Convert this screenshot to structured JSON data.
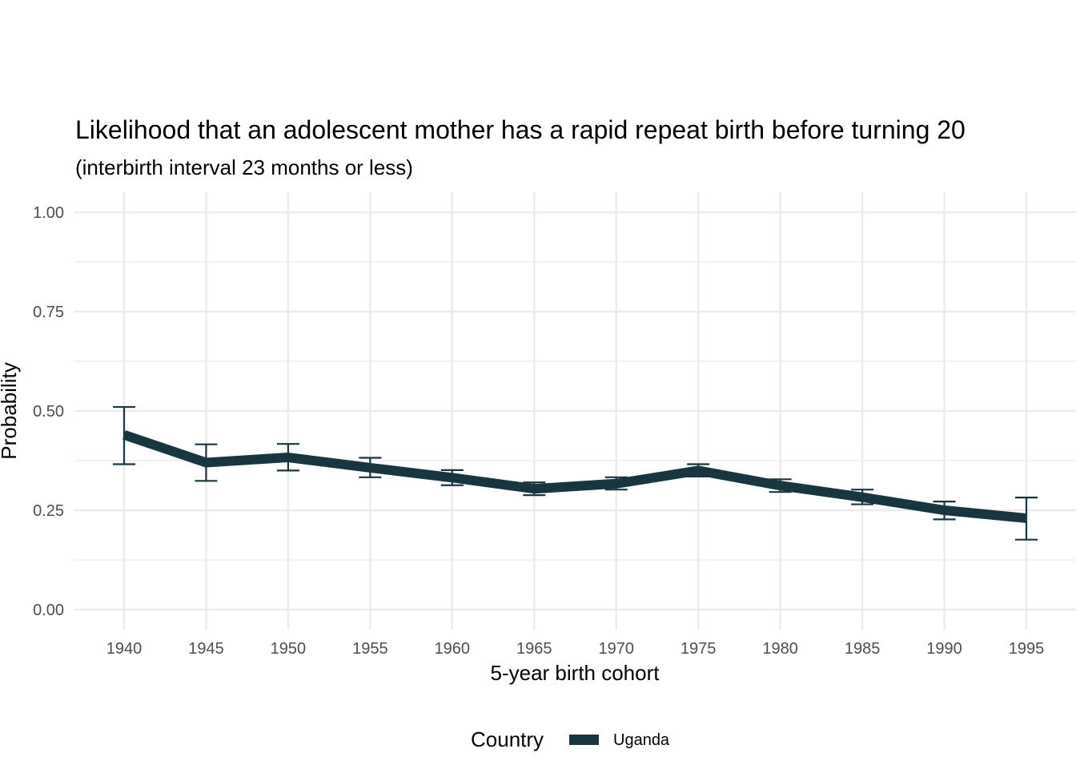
{
  "chart_data": {
    "type": "line",
    "title": "Likelihood that an adolescent mother has a rapid repeat birth before turning 20",
    "subtitle": "(interbirth interval 23 months or less)",
    "xlabel": "5-year birth cohort",
    "ylabel": "Probability",
    "x": [
      1940,
      1945,
      1950,
      1955,
      1960,
      1965,
      1970,
      1975,
      1980,
      1985,
      1990,
      1995
    ],
    "x_tick_labels": [
      "1940",
      "1945",
      "1950",
      "1955",
      "1960",
      "1965",
      "1970",
      "1975",
      "1980",
      "1985",
      "1990",
      "1995"
    ],
    "y_tick_labels": [
      "0.00",
      "0.25",
      "0.50",
      "0.75",
      "1.00"
    ],
    "y_ticks": [
      0,
      0.25,
      0.5,
      0.75,
      1.0
    ],
    "ylim": [
      -0.05,
      1.05
    ],
    "series": [
      {
        "name": "Uganda",
        "color": "#17363f",
        "values": [
          0.44,
          0.37,
          0.383,
          0.357,
          0.332,
          0.304,
          0.317,
          0.35,
          0.312,
          0.283,
          0.25,
          0.23
        ],
        "lower": [
          0.366,
          0.324,
          0.35,
          0.333,
          0.313,
          0.288,
          0.302,
          0.335,
          0.296,
          0.265,
          0.227,
          0.176
        ],
        "upper": [
          0.51,
          0.416,
          0.417,
          0.382,
          0.351,
          0.32,
          0.333,
          0.366,
          0.328,
          0.302,
          0.272,
          0.282
        ]
      }
    ],
    "grid": true,
    "legend": {
      "title": "Country",
      "position": "bottom",
      "labels": [
        "Uganda"
      ]
    }
  }
}
